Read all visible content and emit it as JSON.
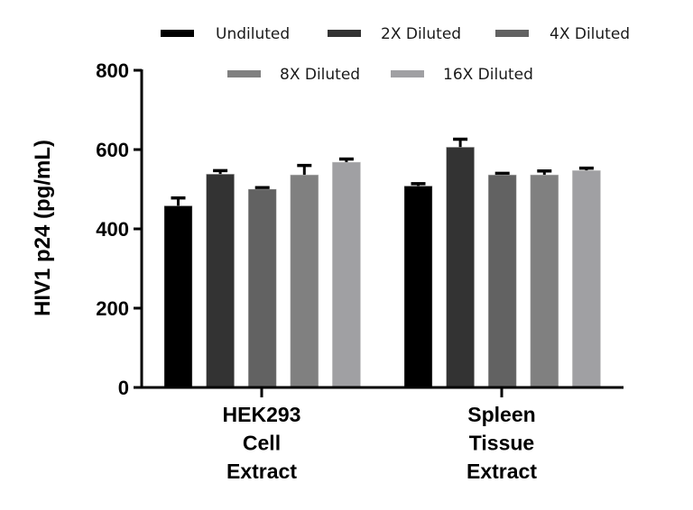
{
  "chart_data": {
    "type": "bar",
    "title": "",
    "xlabel": "",
    "ylabel": "HIV1 p24 (pg/mL)",
    "ylim": [
      0,
      800
    ],
    "yticks": [
      0,
      200,
      400,
      600,
      800
    ],
    "grid": false,
    "legend_position": "top",
    "categories": [
      "HEK293 Cell Extract",
      "Spleen Tissue Extract"
    ],
    "category_label_lines": [
      [
        "HEK293",
        "Cell",
        "Extract"
      ],
      [
        "Spleen",
        "Tissue",
        "Extract"
      ]
    ],
    "series": [
      {
        "name": "Undiluted",
        "color": "#000000",
        "values": [
          458,
          508
        ],
        "error": [
          20,
          6
        ]
      },
      {
        "name": "2X Diluted",
        "color": "#333333",
        "values": [
          538,
          606
        ],
        "error": [
          9,
          20
        ]
      },
      {
        "name": "4X Diluted",
        "color": "#626262",
        "values": [
          500,
          536
        ],
        "error": [
          4,
          4
        ]
      },
      {
        "name": "8X Diluted",
        "color": "#808080",
        "values": [
          536,
          536
        ],
        "error": [
          24,
          10
        ]
      },
      {
        "name": "16X Diluted",
        "color": "#a0a0a3",
        "values": [
          568,
          547
        ],
        "error": [
          8,
          6
        ]
      }
    ]
  }
}
